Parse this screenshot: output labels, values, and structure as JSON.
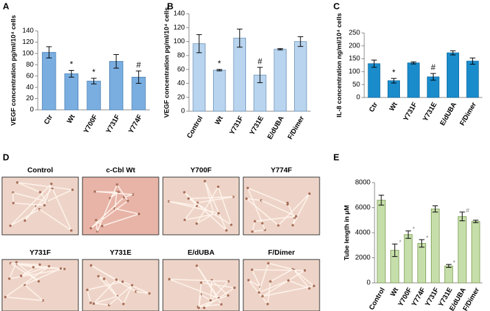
{
  "chart_data": [
    {
      "type": "bar",
      "panel": "A",
      "y_label": "VEGF concentration pg/ml/10⁴ cells",
      "categories": [
        "Ctr",
        "Wt",
        "Y700F",
        "Y731F",
        "Y774F"
      ],
      "values": [
        102,
        64,
        51,
        86,
        58
      ],
      "errors": [
        10,
        6,
        5,
        12,
        11
      ],
      "annotations": [
        null,
        "*",
        "*",
        null,
        "#"
      ],
      "color": "#7aaee0",
      "edge_color": "#4a7fb5",
      "ylim": [
        0,
        140
      ],
      "yticks": [
        0,
        20,
        40,
        60,
        80,
        100,
        120,
        140
      ]
    },
    {
      "type": "bar",
      "panel": "B",
      "y_label": "VEGF concentration pg/ml/10⁴ cells",
      "categories": [
        "Control",
        "Wt",
        "Y731F",
        "Y731E",
        "E/dUBA",
        "F/Dimer"
      ],
      "values": [
        97,
        59,
        105,
        52,
        89,
        100
      ],
      "errors": [
        13,
        1,
        13,
        11,
        1,
        7
      ],
      "annotations": [
        null,
        "*",
        null,
        "#",
        null,
        null
      ],
      "color": "#b8d4ee",
      "edge_color": "#6f93b8",
      "ylim": [
        0,
        140
      ],
      "yticks": [
        0,
        20,
        40,
        60,
        80,
        100,
        120,
        140
      ]
    },
    {
      "type": "bar",
      "panel": "C",
      "y_label": "IL-8 concentration ng/ml/10⁴ cells",
      "categories": [
        "Ctr",
        "Wt",
        "Y731F",
        "Y731E",
        "E/dUBA",
        "F/Dimer"
      ],
      "values": [
        131,
        65,
        134,
        80,
        173,
        141
      ],
      "errors": [
        14,
        9,
        4,
        13,
        8,
        12
      ],
      "annotations": [
        null,
        "*",
        null,
        "#",
        null,
        null
      ],
      "color": "#1a8ccc",
      "edge_color": "#0f6a9e",
      "ylim": [
        0,
        250
      ],
      "yticks": [
        0,
        50,
        100,
        150,
        200,
        250
      ]
    },
    {
      "type": "bar",
      "panel": "E",
      "y_label": "Tube length in μM",
      "categories": [
        "Control",
        "Wt",
        "Y700F",
        "Y774F",
        "Y731F",
        "Y731E",
        "E/dUBA",
        "F/Dimer"
      ],
      "values": [
        6600,
        2600,
        3850,
        3150,
        5900,
        1350,
        5300,
        4900
      ],
      "errors": [
        400,
        500,
        300,
        300,
        250,
        120,
        350,
        100
      ],
      "annotations": [
        null,
        "*",
        "*",
        "*",
        null,
        "*",
        "#",
        null
      ],
      "color": "#c6deaa",
      "edge_color": "#7a9a50",
      "ylim": [
        0,
        8000
      ],
      "yticks": [
        0,
        2000,
        4000,
        6000,
        8000
      ]
    }
  ],
  "panel_d": {
    "panel": "D",
    "images": [
      "Control",
      "c-Cbl  Wt",
      "Y700F",
      "Y774F",
      "Y731F",
      "Y731E",
      "E/dUBA",
      "F/Dimer"
    ]
  }
}
